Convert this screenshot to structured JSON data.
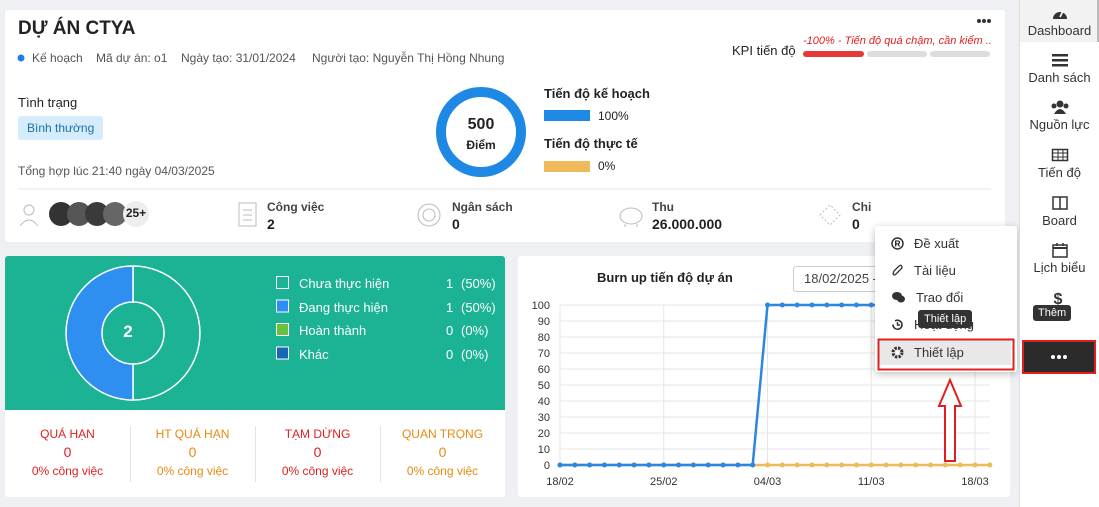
{
  "header": {
    "title": "DỰ ÁN CTYA",
    "status_tag": "Kế hoạch",
    "project_code": "Mã dự án: o1",
    "created_date": "Ngày tạo: 31/01/2024",
    "creator": "Người tạo: Nguyễn Thị Hồng Nhung",
    "kpi_label": "KPI tiến độ",
    "kpi_text": "-100% - Tiến độ quá chậm, cần kiểm ..."
  },
  "status": {
    "label": "Tình trạng",
    "badge": "Bình thường",
    "updated": "Tổng hợp lúc 21:40 ngày 04/03/2025"
  },
  "score": {
    "value": "500",
    "unit": "Điểm"
  },
  "progress": [
    {
      "label": "Tiến độ kế hoạch",
      "value": "100%"
    },
    {
      "label": "Tiến độ thực tế",
      "value": "0%"
    }
  ],
  "stats": {
    "members": "25+",
    "items": [
      {
        "label": "Công việc",
        "value": "2"
      },
      {
        "label": "Ngân sách",
        "value": "0"
      },
      {
        "label": "Thu",
        "value": "26.000.000"
      },
      {
        "label": "Chi",
        "value": "0"
      }
    ]
  },
  "task_summary": {
    "total": "2",
    "items": [
      {
        "label": "Chưa thực hiện",
        "count": 1,
        "percent": "(50%)",
        "color": "#1bb394"
      },
      {
        "label": "Đang thực hiện",
        "count": 1,
        "percent": "(50%)",
        "color": "#2e8ff0"
      },
      {
        "label": "Hoàn thành",
        "count": 0,
        "percent": "(0%)",
        "color": "#6abf3b"
      },
      {
        "label": "Khác",
        "count": 0,
        "percent": "(0%)",
        "color": "#1a66b5"
      }
    ]
  },
  "warnings": [
    {
      "label": "QUÁ HẠN",
      "value": "0",
      "sub": "0% công việc"
    },
    {
      "label": "HT QUÁ HẠN",
      "value": "0",
      "sub": "0% công việc"
    },
    {
      "label": "TẠM DỪNG",
      "value": "0",
      "sub": "0% công việc"
    },
    {
      "label": "QUAN TRỌNG",
      "value": "0",
      "sub": "0% công việc"
    }
  ],
  "chart_data": {
    "type": "line",
    "title": "Burn up tiến độ dự án",
    "date_filter": "18/02/2025 -",
    "categories": [
      "18/02",
      null,
      null,
      null,
      null,
      null,
      null,
      "25/02",
      null,
      null,
      null,
      null,
      null,
      null,
      "04/03",
      null,
      null,
      null,
      null,
      null,
      null,
      "11/03",
      null,
      null,
      null,
      null,
      null,
      null,
      "18/03",
      null
    ],
    "series": [
      {
        "color": "#2e86de",
        "values": [
          0,
          0,
          0,
          0,
          0,
          0,
          0,
          0,
          0,
          0,
          0,
          0,
          0,
          0,
          100,
          100,
          100,
          100,
          100,
          100,
          100,
          100,
          100,
          100,
          100,
          100,
          100,
          100,
          100,
          100
        ]
      },
      {
        "color": "#f0b95a",
        "values": [
          0,
          0,
          0,
          0,
          0,
          0,
          0,
          0,
          0,
          0,
          0,
          0,
          0,
          0,
          0,
          0,
          0,
          0,
          0,
          0,
          0,
          0,
          0,
          0,
          0,
          0,
          0,
          0,
          0,
          0
        ]
      }
    ],
    "ylim": [
      0,
      100
    ],
    "yticks": [
      0,
      10,
      20,
      30,
      40,
      50,
      60,
      70,
      80,
      90,
      100
    ],
    "grid": true
  },
  "menu": {
    "items": [
      "Đề xuất",
      "Tài liệu",
      "Trao đổi",
      "Hoạt động",
      "Thiết lập"
    ],
    "tooltip": "Thiết lập"
  },
  "sidebar": {
    "items": [
      "Dashboard",
      "Danh sách",
      "Nguồn lực",
      "Tiến độ",
      "Board",
      "Lịch biểu"
    ],
    "more_tooltip": "Thêm"
  }
}
